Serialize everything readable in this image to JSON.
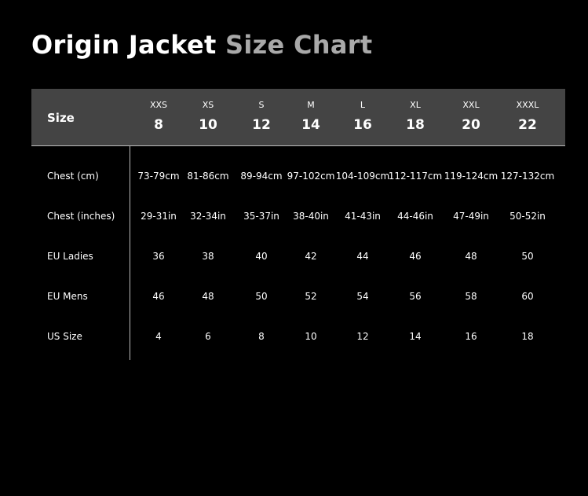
{
  "title": {
    "bold": "Origin Jacket",
    "gray": "Size Chart"
  },
  "header": {
    "label": "Size",
    "columns": [
      {
        "letter": "XXS",
        "number": "8"
      },
      {
        "letter": "XS",
        "number": "10"
      },
      {
        "letter": "S",
        "number": "12"
      },
      {
        "letter": "M",
        "number": "14"
      },
      {
        "letter": "L",
        "number": "16"
      },
      {
        "letter": "XL",
        "number": "18"
      },
      {
        "letter": "XXL",
        "number": "20"
      },
      {
        "letter": "XXXL",
        "number": "22"
      }
    ]
  },
  "rows": [
    {
      "label": "Chest (cm)",
      "values": [
        "73-79cm",
        "81-86cm",
        "89-94cm",
        "97-102cm",
        "104-109cm",
        "112-117cm",
        "119-124cm",
        "127-132cm"
      ]
    },
    {
      "label": "Chest (inches)",
      "values": [
        "29-31in",
        "32-34in",
        "35-37in",
        "38-40in",
        "41-43in",
        "44-46in",
        "47-49in",
        "50-52in"
      ]
    },
    {
      "label": "EU Ladies",
      "values": [
        "36",
        "38",
        "40",
        "42",
        "44",
        "46",
        "48",
        "50"
      ]
    },
    {
      "label": "EU Mens",
      "values": [
        "46",
        "48",
        "50",
        "52",
        "54",
        "56",
        "58",
        "60"
      ]
    },
    {
      "label": "US Size",
      "values": [
        "4",
        "6",
        "8",
        "10",
        "12",
        "14",
        "16",
        "18"
      ]
    }
  ],
  "colors": {
    "background": "#000000",
    "header": "#444444",
    "title_gray": "#a9a9a9"
  }
}
